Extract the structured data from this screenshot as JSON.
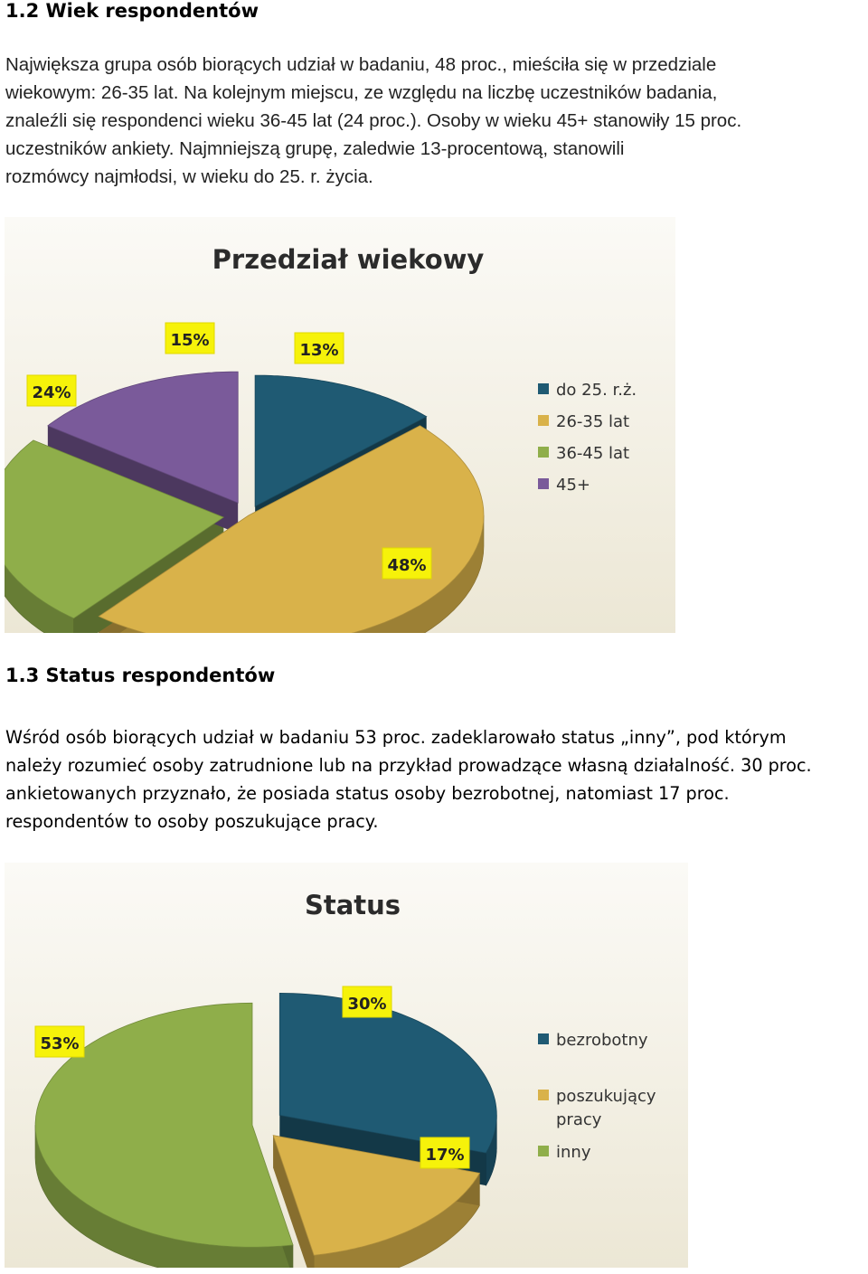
{
  "section1": {
    "heading": "1.2 Wiek respondentów",
    "lines": [
      "Największa grupa osób biorących udział w  badaniu, 48 proc.,  mieściła się w przedziale",
      "wiekowym: 26-35 lat. Na kolejnym miejscu, ze względu na liczbę uczestników badania,",
      "znaleźli się respondenci  wieku 36-45 lat (24 proc.). Osoby w wieku 45+ stanowiły 15 proc.",
      "uczestników ankiety. Najmniejszą grupę, zaledwie 13-procentową, stanowili",
      "rozmówcy  najmłodsi, w wieku do 25. r. życia."
    ]
  },
  "section2": {
    "heading": "1.3 Status respondentów",
    "lines": [
      "Wśród osób biorących udział w badaniu 53 proc. zadeklarowało status „inny”, pod którym",
      "należy rozumieć osoby zatrudnione lub na przykład prowadzące własną działalność. 30 proc.",
      "ankietowanych przyznało, że posiada status osoby bezrobotnej, natomiast 17 proc.",
      "respondentów to osoby poszukujące pracy."
    ]
  },
  "chart_data": [
    {
      "type": "pie",
      "title": "Przedział wiekowy",
      "legend_position": "right",
      "categories": [
        "do 25. r.ż.",
        "26-35 lat",
        "36-45 lat",
        "45+"
      ],
      "values": [
        13,
        48,
        24,
        15
      ],
      "labels": [
        "13%",
        "48%",
        "24%",
        "15%"
      ],
      "colors": [
        "#1f5a73",
        "#d9b24a",
        "#8fae4a",
        "#7a5a9a"
      ]
    },
    {
      "type": "pie",
      "title": "Status",
      "legend_position": "right",
      "categories": [
        "bezrobotny",
        "poszukujący pracy",
        "inny"
      ],
      "values": [
        30,
        17,
        53
      ],
      "labels": [
        "30%",
        "17%",
        "53%"
      ],
      "colors": [
        "#1f5a73",
        "#d9b24a",
        "#8fae4a"
      ]
    }
  ]
}
